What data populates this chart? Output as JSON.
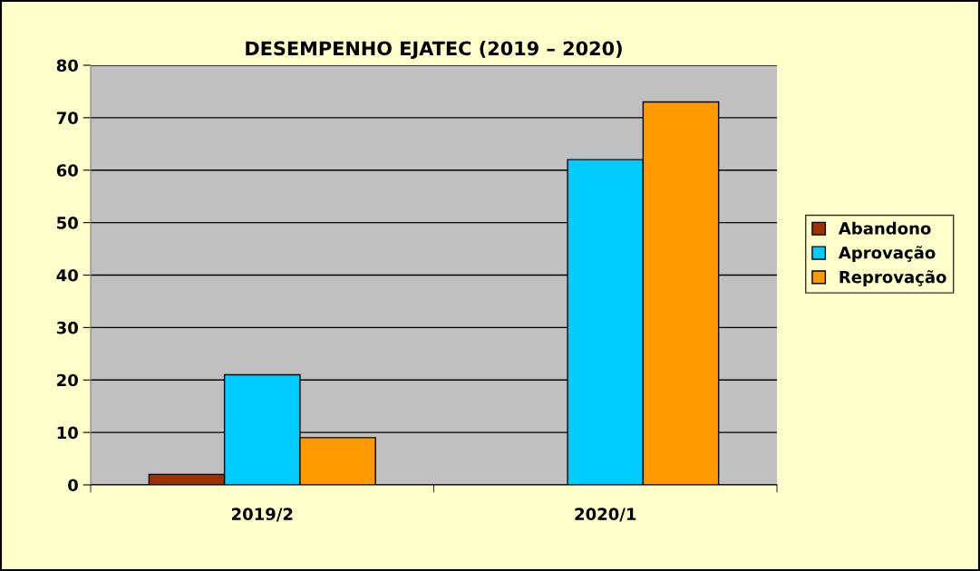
{
  "chart_data": {
    "type": "bar",
    "title": "DESEMPENHO EJATEC (2019 – 2020)",
    "categories": [
      "2019/2",
      "2020/1"
    ],
    "series": [
      {
        "name": "Abandono",
        "color": "#993300",
        "values": [
          2,
          null
        ]
      },
      {
        "name": "Aprovação",
        "color": "#00ccff",
        "values": [
          21,
          62
        ]
      },
      {
        "name": "Reprovação",
        "color": "#ff9900",
        "values": [
          9,
          73
        ]
      }
    ],
    "ylim": [
      0,
      80
    ],
    "yticks": [
      0,
      10,
      20,
      30,
      40,
      50,
      60,
      70,
      80
    ],
    "grid": "y",
    "legend": "right"
  }
}
